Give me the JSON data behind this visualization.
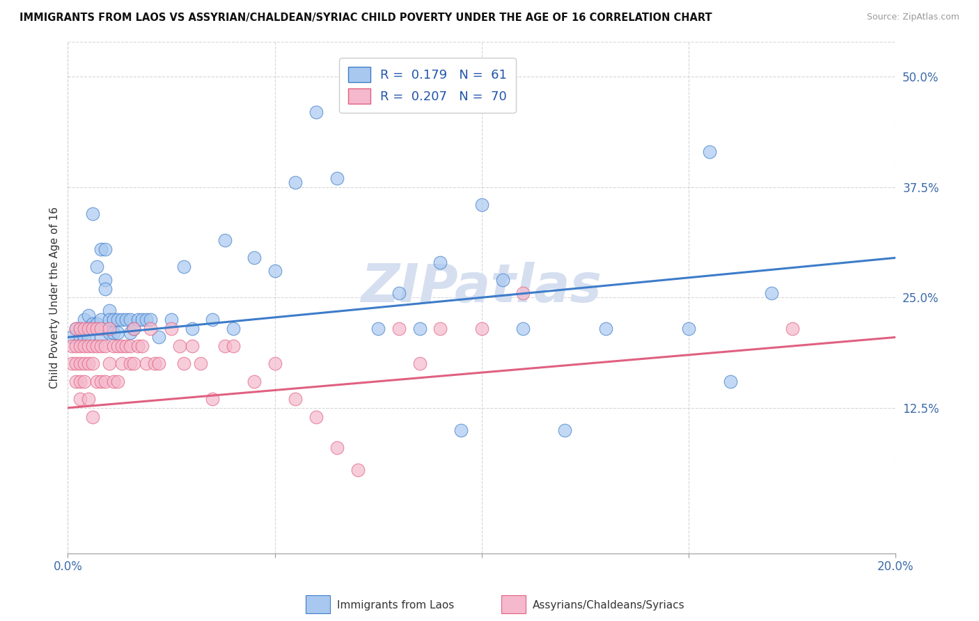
{
  "title": "IMMIGRANTS FROM LAOS VS ASSYRIAN/CHALDEAN/SYRIAC CHILD POVERTY UNDER THE AGE OF 16 CORRELATION CHART",
  "source": "Source: ZipAtlas.com",
  "ylabel": "Child Poverty Under the Age of 16",
  "xlim": [
    0.0,
    0.2
  ],
  "ylim": [
    -0.04,
    0.54
  ],
  "xtick_vals": [
    0.0,
    0.05,
    0.1,
    0.15,
    0.2
  ],
  "xticklabels": [
    "0.0%",
    "",
    "",
    "",
    "20.0%"
  ],
  "yticks_right": [
    0.125,
    0.25,
    0.375,
    0.5
  ],
  "yticklabels_right": [
    "12.5%",
    "25.0%",
    "37.5%",
    "50.0%"
  ],
  "blue_color": "#A8C8F0",
  "pink_color": "#F5B8CC",
  "blue_line_color": "#3D7CC9",
  "pink_line_color": "#E06080",
  "watermark": "ZIPatlas",
  "blue_scatter_x": [
    0.001,
    0.002,
    0.003,
    0.003,
    0.004,
    0.004,
    0.005,
    0.005,
    0.005,
    0.006,
    0.006,
    0.007,
    0.007,
    0.008,
    0.008,
    0.008,
    0.009,
    0.009,
    0.009,
    0.01,
    0.01,
    0.01,
    0.011,
    0.011,
    0.012,
    0.012,
    0.013,
    0.014,
    0.015,
    0.015,
    0.016,
    0.017,
    0.018,
    0.019,
    0.02,
    0.022,
    0.025,
    0.028,
    0.03,
    0.035,
    0.038,
    0.04,
    0.045,
    0.05,
    0.055,
    0.06,
    0.065,
    0.075,
    0.08,
    0.085,
    0.09,
    0.095,
    0.1,
    0.105,
    0.11,
    0.12,
    0.13,
    0.15,
    0.155,
    0.16,
    0.17
  ],
  "blue_scatter_y": [
    0.205,
    0.215,
    0.215,
    0.205,
    0.225,
    0.205,
    0.23,
    0.215,
    0.205,
    0.345,
    0.22,
    0.285,
    0.22,
    0.305,
    0.225,
    0.205,
    0.305,
    0.27,
    0.26,
    0.235,
    0.225,
    0.21,
    0.225,
    0.21,
    0.225,
    0.21,
    0.225,
    0.225,
    0.225,
    0.21,
    0.215,
    0.225,
    0.225,
    0.225,
    0.225,
    0.205,
    0.225,
    0.285,
    0.215,
    0.225,
    0.315,
    0.215,
    0.295,
    0.28,
    0.38,
    0.46,
    0.385,
    0.215,
    0.255,
    0.215,
    0.29,
    0.1,
    0.355,
    0.27,
    0.215,
    0.1,
    0.215,
    0.215,
    0.415,
    0.155,
    0.255
  ],
  "pink_scatter_x": [
    0.001,
    0.001,
    0.002,
    0.002,
    0.002,
    0.002,
    0.003,
    0.003,
    0.003,
    0.003,
    0.003,
    0.004,
    0.004,
    0.004,
    0.004,
    0.005,
    0.005,
    0.005,
    0.005,
    0.006,
    0.006,
    0.006,
    0.006,
    0.007,
    0.007,
    0.007,
    0.008,
    0.008,
    0.008,
    0.009,
    0.009,
    0.01,
    0.01,
    0.011,
    0.011,
    0.012,
    0.012,
    0.013,
    0.013,
    0.014,
    0.015,
    0.015,
    0.016,
    0.016,
    0.017,
    0.018,
    0.019,
    0.02,
    0.021,
    0.022,
    0.025,
    0.027,
    0.028,
    0.03,
    0.032,
    0.035,
    0.038,
    0.04,
    0.045,
    0.05,
    0.055,
    0.06,
    0.065,
    0.07,
    0.08,
    0.085,
    0.09,
    0.1,
    0.11,
    0.175
  ],
  "pink_scatter_y": [
    0.195,
    0.175,
    0.215,
    0.195,
    0.175,
    0.155,
    0.215,
    0.195,
    0.175,
    0.155,
    0.135,
    0.215,
    0.195,
    0.175,
    0.155,
    0.215,
    0.195,
    0.175,
    0.135,
    0.215,
    0.195,
    0.175,
    0.115,
    0.215,
    0.195,
    0.155,
    0.215,
    0.195,
    0.155,
    0.195,
    0.155,
    0.215,
    0.175,
    0.195,
    0.155,
    0.195,
    0.155,
    0.195,
    0.175,
    0.195,
    0.195,
    0.175,
    0.215,
    0.175,
    0.195,
    0.195,
    0.175,
    0.215,
    0.175,
    0.175,
    0.215,
    0.195,
    0.175,
    0.195,
    0.175,
    0.135,
    0.195,
    0.195,
    0.155,
    0.175,
    0.135,
    0.115,
    0.08,
    0.055,
    0.215,
    0.175,
    0.215,
    0.215,
    0.255,
    0.215
  ],
  "blue_trend_x": [
    0.0,
    0.2
  ],
  "blue_trend_y": [
    0.205,
    0.295
  ],
  "pink_trend_x": [
    0.0,
    0.2
  ],
  "pink_trend_y": [
    0.125,
    0.205
  ],
  "background_color": "#FFFFFF",
  "grid_color": "#CCCCCC",
  "watermark_color": "#D5DFF0",
  "legend_blue_label": "R =  0.179   N =  61",
  "legend_pink_label": "R =  0.207   N =  70"
}
